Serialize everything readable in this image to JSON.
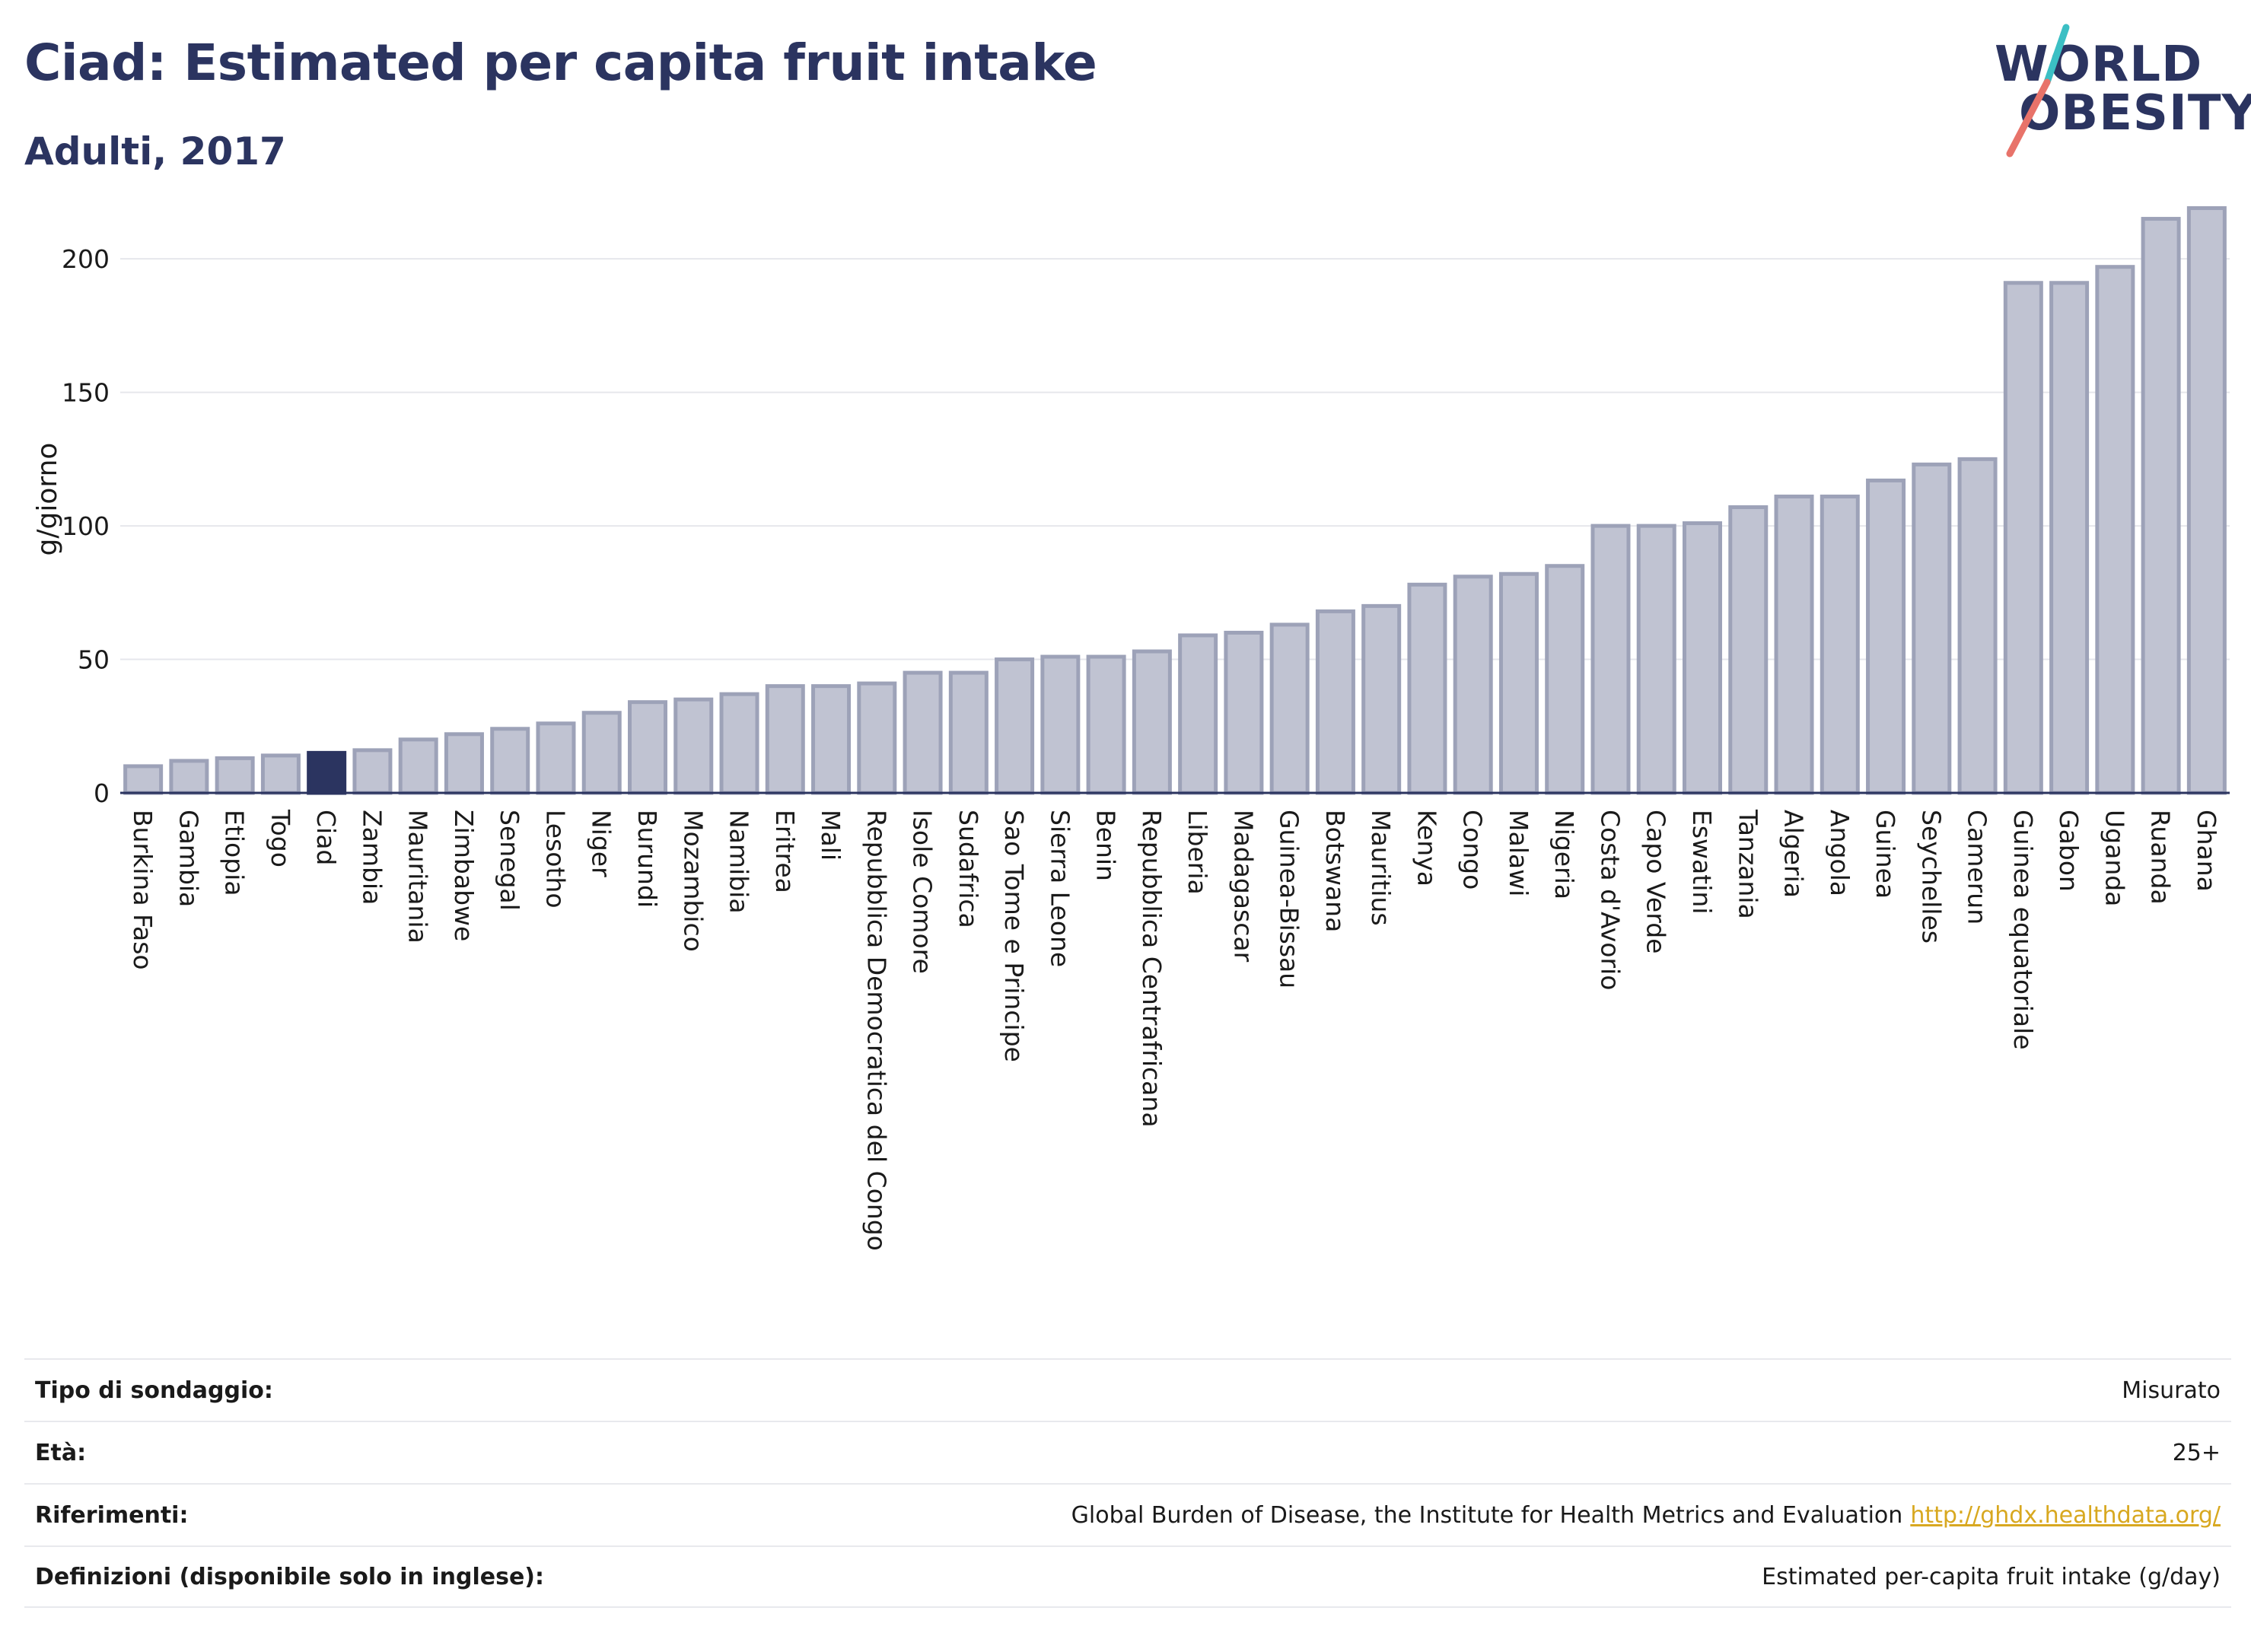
{
  "header": {
    "title": "Ciad: Estimated per capita fruit intake",
    "subtitle": "Adulti, 2017"
  },
  "logo": {
    "line1": "WORLD",
    "line2": "OBESITY",
    "colors": {
      "teal": "#3bbfc4",
      "coral": "#e8736a",
      "navy": "#2b3460"
    }
  },
  "chart_data": {
    "type": "bar",
    "ylabel": "g/giorno",
    "xlabel": "",
    "ylim": [
      0,
      220
    ],
    "yticks": [
      0,
      50,
      100,
      150,
      200
    ],
    "grid": true,
    "highlight": "Ciad",
    "colors": {
      "bar": "#c0c3d2",
      "bar_border": "#9da2b8",
      "highlight": "#2b3460",
      "grid": "#e6e7ec",
      "axis": "#2b3460"
    },
    "categories": [
      "Burkina Faso",
      "Gambia",
      "Etiopia",
      "Togo",
      "Ciad",
      "Zambia",
      "Mauritania",
      "Zimbabwe",
      "Senegal",
      "Lesotho",
      "Niger",
      "Burundi",
      "Mozambico",
      "Namibia",
      "Eritrea",
      "Mali",
      "Repubblica Democratica del Congo",
      "Isole Comore",
      "Sudafrica",
      "Sao Tome e Principe",
      "Sierra Leone",
      "Benin",
      "Repubblica Centrafricana",
      "Liberia",
      "Madagascar",
      "Guinea-Bissau",
      "Botswana",
      "Mauritius",
      "Kenya",
      "Congo",
      "Malawi",
      "Nigeria",
      "Costa d'Avorio",
      "Capo Verde",
      "Eswatini",
      "Tanzania",
      "Algeria",
      "Angola",
      "Guinea",
      "Seychelles",
      "Camerun",
      "Guinea equatoriale",
      "Gabon",
      "Uganda",
      "Ruanda",
      "Ghana"
    ],
    "values": [
      10,
      12,
      13,
      14,
      15,
      16,
      20,
      22,
      24,
      26,
      30,
      34,
      35,
      37,
      40,
      40,
      41,
      45,
      45,
      50,
      51,
      51,
      53,
      59,
      60,
      63,
      68,
      70,
      78,
      81,
      82,
      85,
      100,
      100,
      101,
      107,
      111,
      111,
      117,
      123,
      125,
      191,
      191,
      197,
      215,
      219
    ]
  },
  "info": {
    "rows": [
      {
        "label": "Tipo di sondaggio:",
        "value": "Misurato",
        "link": ""
      },
      {
        "label": "Età:",
        "value": "25+",
        "link": ""
      },
      {
        "label": "Riferimenti:",
        "value": "Global Burden of Disease, the Institute for Health Metrics and Evaluation",
        "link": "http://ghdx.healthdata.org/"
      },
      {
        "label": "Definizioni (disponibile solo in inglese):",
        "value": "Estimated per-capita fruit intake (g/day)",
        "link": ""
      }
    ]
  }
}
